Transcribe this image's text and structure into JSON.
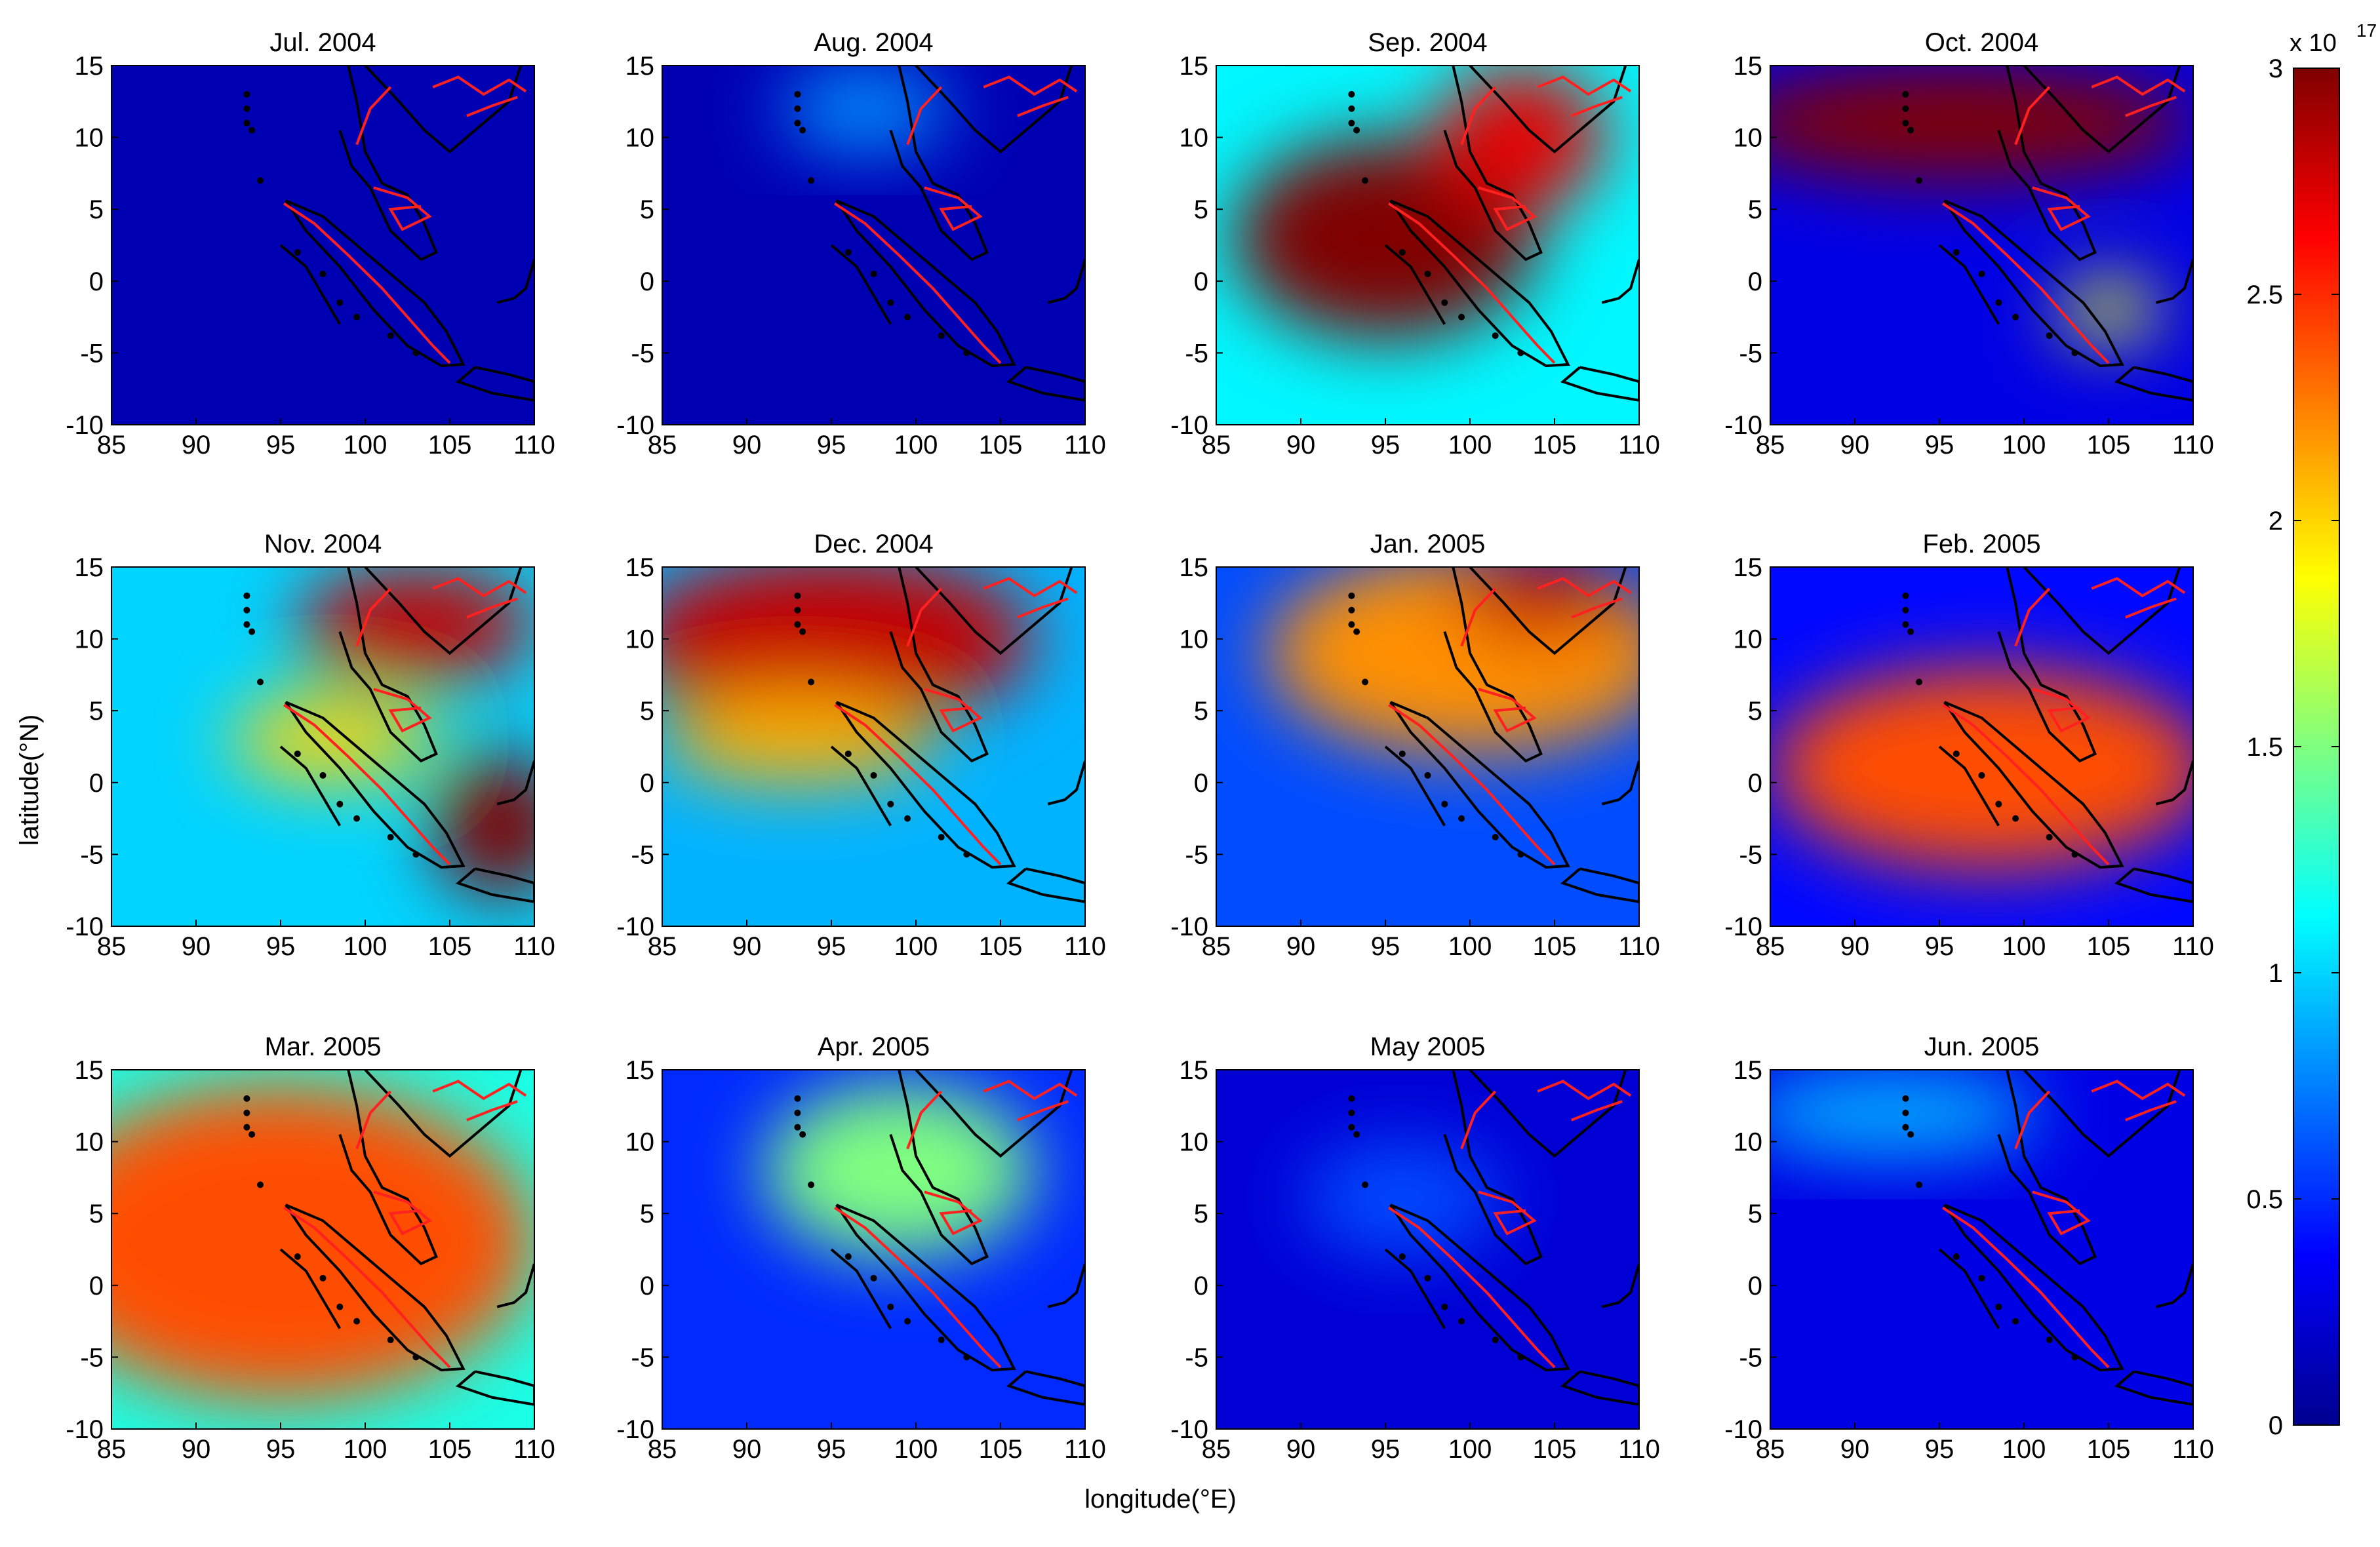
{
  "figure": {
    "xlabel": "longitude(°E)",
    "ylabel": "latitude(°N)"
  },
  "colorbar": {
    "min": 0,
    "max": 3,
    "ticks": [
      0,
      0.5,
      1,
      1.5,
      2,
      2.5,
      3
    ],
    "tick_labels": [
      "0",
      "0.5",
      "1",
      "1.5",
      "2",
      "2.5",
      "3"
    ],
    "exponent_label": "x 10",
    "exponent_power": "17",
    "colormap": "jet"
  },
  "chart_data": {
    "type": "heatmap",
    "xlim": [
      85,
      110
    ],
    "ylim": [
      -10,
      15
    ],
    "x_ticks": [
      85,
      90,
      95,
      100,
      105,
      110
    ],
    "y_ticks": [
      -10,
      -5,
      0,
      5,
      10,
      15
    ],
    "x_tick_labels": [
      "85",
      "90",
      "95",
      "100",
      "105",
      "110"
    ],
    "y_tick_labels": [
      "-10",
      "-5",
      "0",
      "5",
      "10",
      "15"
    ],
    "value_range": [
      0,
      3
    ],
    "value_unit_multiplier": "x 10^17",
    "panels": [
      {
        "title": "Jul. 2004",
        "background": 0.15,
        "blobs": []
      },
      {
        "title": "Aug. 2004",
        "background": 0.15,
        "blobs": [
          {
            "lon": 97,
            "lat": 12,
            "value": 0.8,
            "rx": 5,
            "ry": 3
          }
        ]
      },
      {
        "title": "Sep. 2004",
        "background": 1.1,
        "blobs": [
          {
            "lon": 95,
            "lat": 3,
            "value": 3.0,
            "rx": 9,
            "ry": 7
          },
          {
            "lon": 103,
            "lat": 10,
            "value": 2.7,
            "rx": 5,
            "ry": 5
          }
        ]
      },
      {
        "title": "Oct. 2004",
        "background": 0.3,
        "blobs": [
          {
            "lon": 96,
            "lat": 11,
            "value": 3.0,
            "rx": 14,
            "ry": 4
          },
          {
            "lon": 105,
            "lat": -2,
            "value": 1.8,
            "rx": 3,
            "ry": 2
          }
        ]
      },
      {
        "title": "Nov. 2004",
        "background": 1.0,
        "blobs": [
          {
            "lon": 103,
            "lat": 11,
            "value": 2.8,
            "rx": 7,
            "ry": 4
          },
          {
            "lon": 108,
            "lat": -3,
            "value": 3.0,
            "rx": 4,
            "ry": 5
          },
          {
            "lon": 98,
            "lat": 3,
            "value": 2.0,
            "rx": 6,
            "ry": 3
          }
        ]
      },
      {
        "title": "Dec. 2004",
        "background": 0.9,
        "blobs": [
          {
            "lon": 95,
            "lat": 10,
            "value": 2.8,
            "rx": 12,
            "ry": 6
          },
          {
            "lon": 93,
            "lat": 3,
            "value": 2.1,
            "rx": 8,
            "ry": 3
          }
        ]
      },
      {
        "title": "Jan. 2005",
        "background": 0.6,
        "blobs": [
          {
            "lon": 100,
            "lat": 9,
            "value": 2.2,
            "rx": 12,
            "ry": 7
          },
          {
            "lon": 104,
            "lat": 13,
            "value": 2.8,
            "rx": 5,
            "ry": 3
          }
        ]
      },
      {
        "title": "Feb. 2005",
        "background": 0.4,
        "blobs": [
          {
            "lon": 98,
            "lat": 1,
            "value": 3.0,
            "rx": 10,
            "ry": 5
          },
          {
            "lon": 98,
            "lat": 1,
            "value": 2.4,
            "rx": 13,
            "ry": 7
          }
        ]
      },
      {
        "title": "Mar. 2005",
        "background": 1.2,
        "blobs": [
          {
            "lon": 95,
            "lat": 4,
            "value": 3.0,
            "rx": 13,
            "ry": 8
          },
          {
            "lon": 95,
            "lat": 3,
            "value": 2.4,
            "rx": 15,
            "ry": 11
          }
        ]
      },
      {
        "title": "Apr. 2005",
        "background": 0.5,
        "blobs": [
          {
            "lon": 99,
            "lat": 8,
            "value": 1.5,
            "rx": 8,
            "ry": 6
          }
        ]
      },
      {
        "title": "May 2005",
        "background": 0.25,
        "blobs": [
          {
            "lon": 96,
            "lat": 6,
            "value": 0.6,
            "rx": 6,
            "ry": 4
          }
        ]
      },
      {
        "title": "Jun. 2005",
        "background": 0.3,
        "blobs": [
          {
            "lon": 92,
            "lat": 12,
            "value": 0.9,
            "rx": 9,
            "ry": 3
          }
        ]
      }
    ]
  }
}
